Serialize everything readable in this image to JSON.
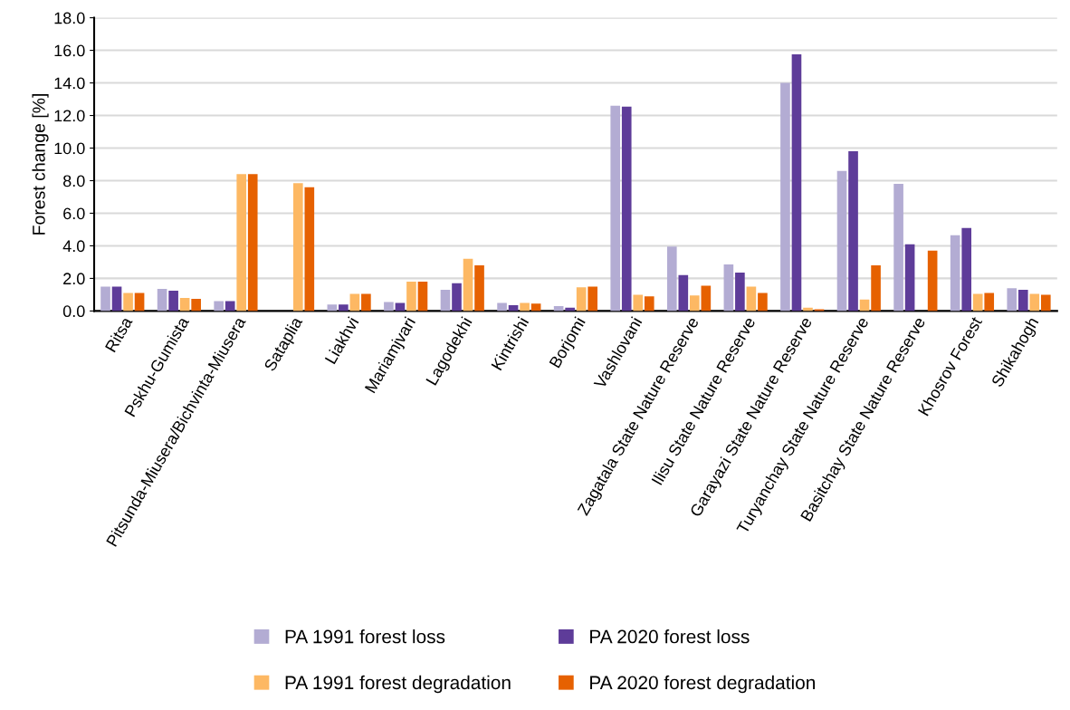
{
  "chart_data": {
    "type": "bar",
    "ylabel": "Forest change [%]",
    "categories": [
      "Ritsa",
      "Pskhu-Gumista",
      "Pitsunda-Miusera/Bichvinta-Miusera",
      "Sataplia",
      "Liakhvi",
      "Mariamjvari",
      "Lagodekhi",
      "Kintrishi",
      "Borjomi",
      "Vashlovani",
      "Zagatala State Nature Reserve",
      "Ilisu State Nature Reserve",
      "Garayazi State Nature Reserve",
      "Turyanchay State Nature Reserve",
      "Basitchay State Nature Reserve",
      "Khosrov Forest",
      "Shikahogh"
    ],
    "series": [
      {
        "name": "PA 1991 forest loss",
        "color": "#b3acd3",
        "values": [
          1.5,
          1.35,
          0.6,
          null,
          0.4,
          0.55,
          1.3,
          0.5,
          0.3,
          12.6,
          3.95,
          2.85,
          14.0,
          8.6,
          7.8,
          4.65,
          1.4
        ]
      },
      {
        "name": "PA 2020 forest loss",
        "color": "#5e3c99",
        "values": [
          1.5,
          1.25,
          0.6,
          null,
          0.4,
          0.5,
          1.7,
          0.35,
          0.2,
          12.55,
          2.2,
          2.35,
          15.75,
          9.8,
          4.1,
          5.1,
          1.3
        ]
      },
      {
        "name": "PA 1991 forest degradation",
        "color": "#fdb863",
        "values": [
          1.1,
          0.8,
          8.4,
          7.85,
          1.05,
          1.8,
          3.2,
          0.5,
          1.45,
          1.0,
          0.95,
          1.5,
          0.2,
          0.7,
          null,
          1.05,
          1.05
        ]
      },
      {
        "name": "PA 2020 forest degradation",
        "color": "#e66101",
        "values": [
          1.1,
          0.75,
          8.4,
          7.6,
          1.05,
          1.8,
          2.8,
          0.45,
          1.5,
          0.9,
          1.55,
          1.1,
          0.1,
          2.8,
          3.7,
          1.1,
          1.0
        ]
      }
    ],
    "ylim": [
      0,
      18
    ],
    "yticks": [
      {
        "value": 0,
        "label": "0.0"
      },
      {
        "value": 2,
        "label": "2.0"
      },
      {
        "value": 4,
        "label": "4.0"
      },
      {
        "value": 6,
        "label": "6.0"
      },
      {
        "value": 8,
        "label": "8.0"
      },
      {
        "value": 10,
        "label": "10.0"
      },
      {
        "value": 12,
        "label": "12.0"
      },
      {
        "value": 14,
        "label": "14.0"
      },
      {
        "value": 16,
        "label": "16.0"
      },
      {
        "value": 18,
        "label": "18.0"
      }
    ],
    "grid": "y",
    "legend": "bottom"
  }
}
